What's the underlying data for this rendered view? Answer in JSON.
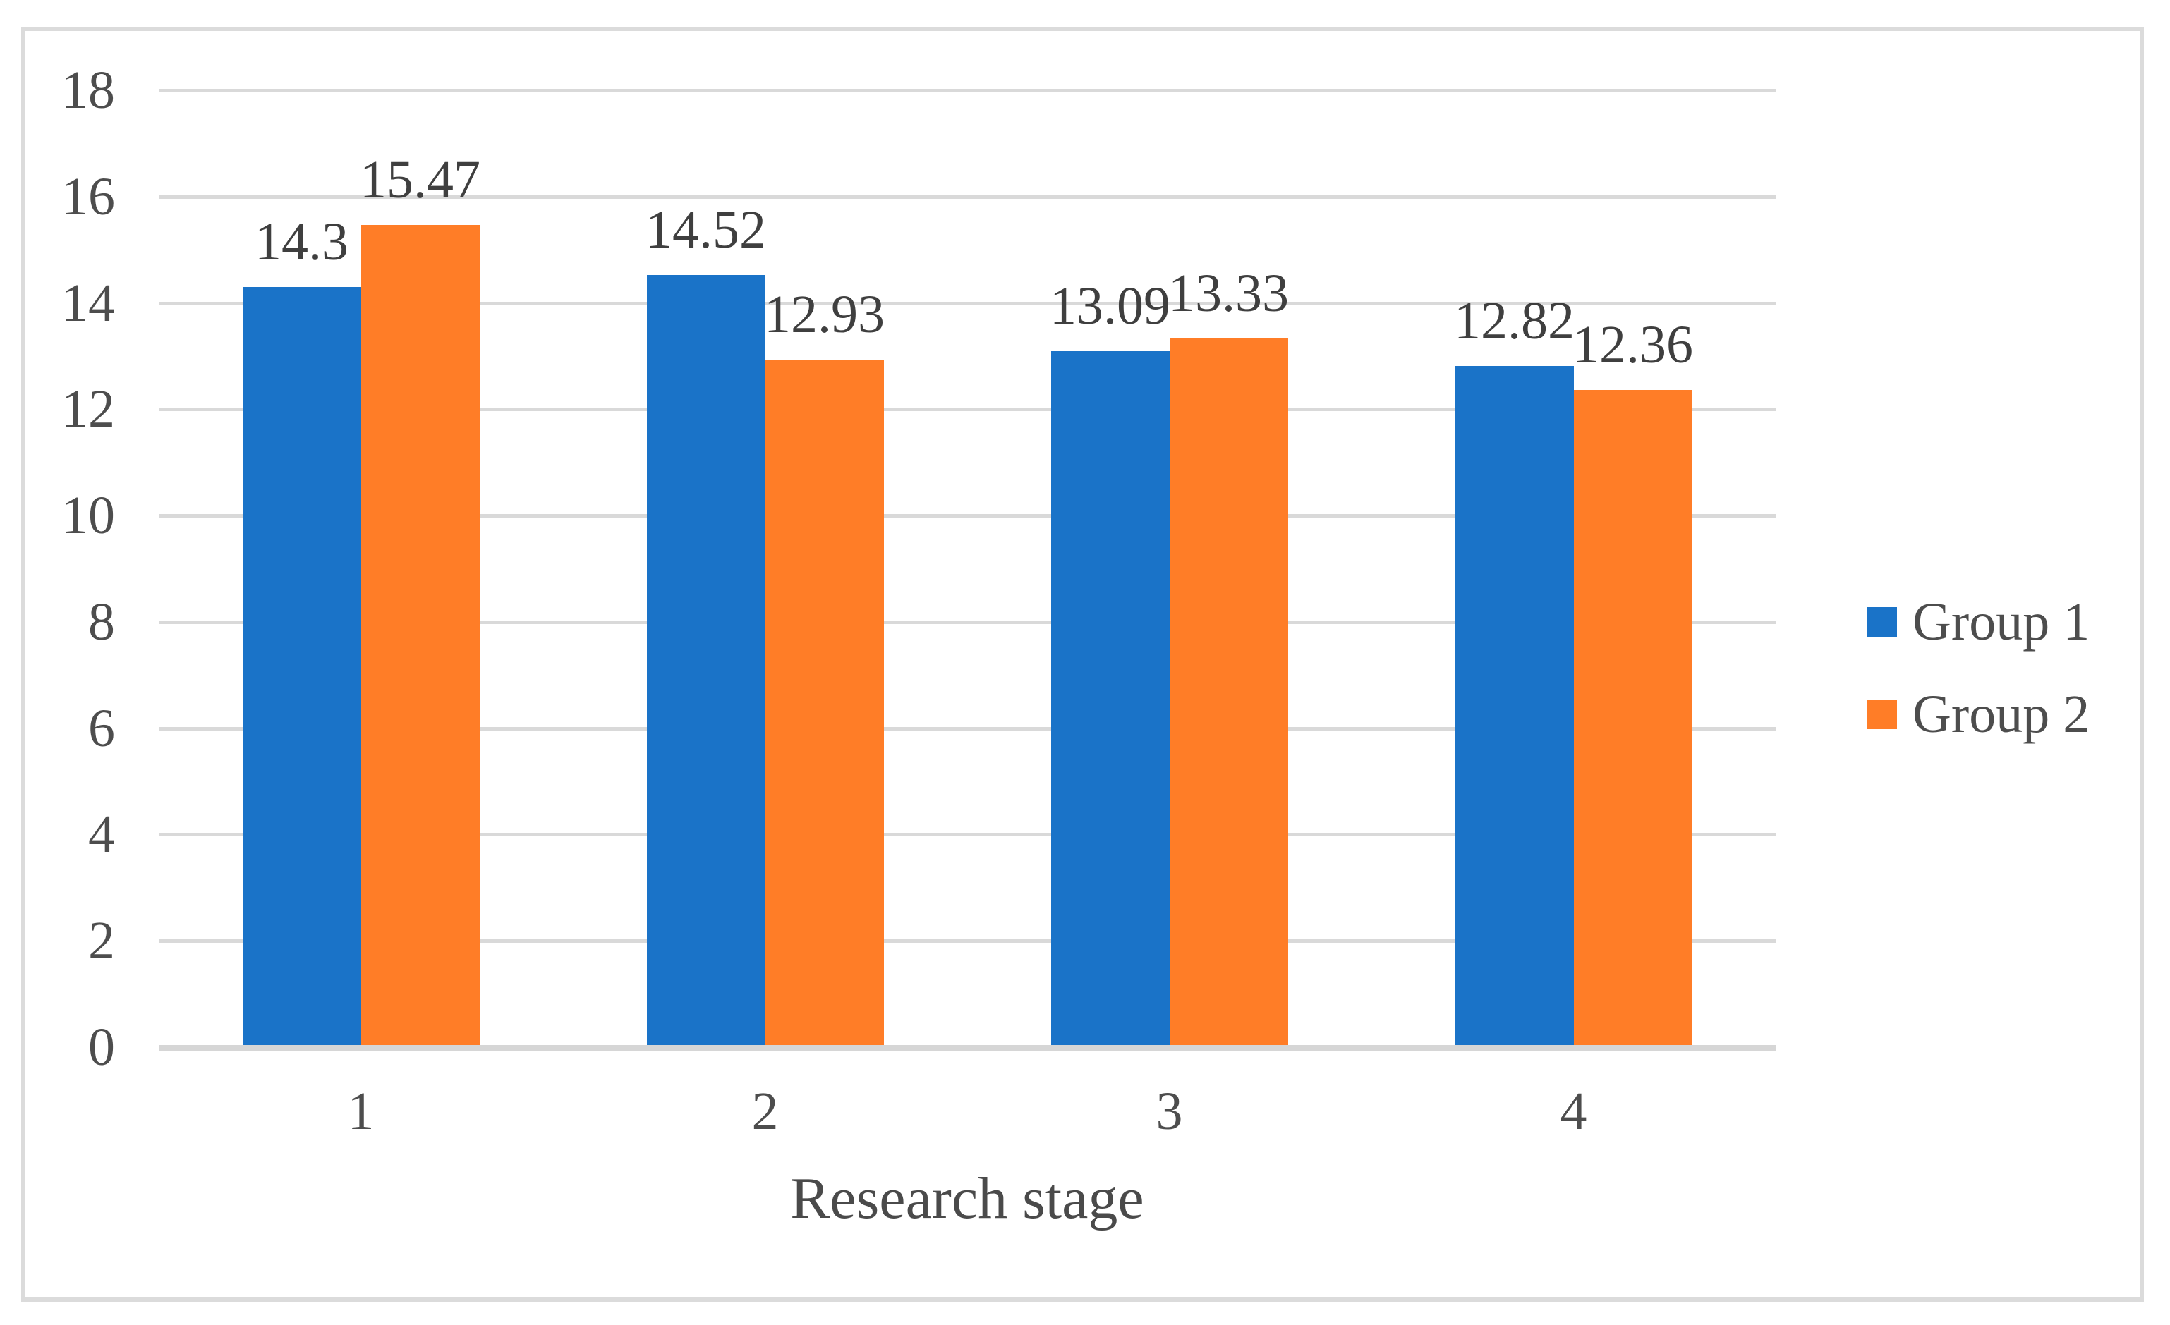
{
  "chart_data": {
    "type": "bar",
    "title": "",
    "categories": [
      "1",
      "2",
      "3",
      "4"
    ],
    "series": [
      {
        "name": "Group 1",
        "color": "#1A73C8",
        "values": [
          14.3,
          14.52,
          13.09,
          12.82
        ],
        "labels": [
          "14.3",
          "14.52",
          "13.09",
          "12.82"
        ]
      },
      {
        "name": "Group 2",
        "color": "#FF7D27",
        "values": [
          15.47,
          12.93,
          13.33,
          12.36
        ],
        "labels": [
          "15.47",
          "12.93",
          "13.33",
          "12.36"
        ]
      }
    ],
    "xlabel": "Research stage",
    "ylabel": "",
    "ylim": [
      0,
      18
    ],
    "yticks": [
      "0",
      "2",
      "4",
      "6",
      "8",
      "10",
      "12",
      "14",
      "16",
      "18"
    ],
    "grid": true,
    "legend_position": "right-middle",
    "colors": {
      "gridline": "#D9D9D9",
      "axis_line": "#D6D6D6",
      "frame_border": "#DBDBDB",
      "tick_text": "#4D4D4D",
      "data_label_text": "#3F3F3F"
    }
  }
}
